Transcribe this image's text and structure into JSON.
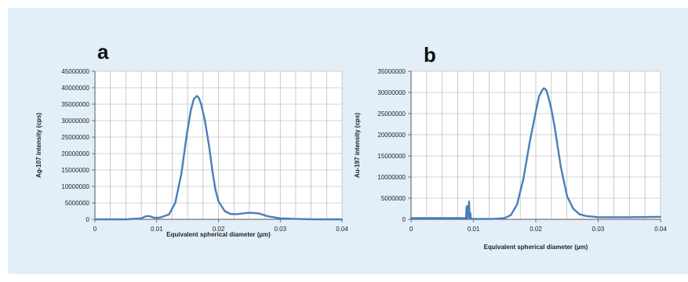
{
  "chart_data": [
    {
      "type": "line",
      "panel_label": "a",
      "xlabel": "Equivalent spherical diameter (µm)",
      "ylabel": "Ag-107 intensity (cps)",
      "xlim": [
        0,
        0.04
      ],
      "ylim": [
        0,
        45000000
      ],
      "x_ticks": [
        "0",
        "0.01",
        "0.02",
        "0.03",
        "0.04"
      ],
      "y_ticks": [
        "0",
        "5000000",
        "10000000",
        "15000000",
        "20000000",
        "25000000",
        "30000000",
        "35000000",
        "40000000",
        "45000000"
      ],
      "x_tick_values": [
        0,
        0.01,
        0.02,
        0.03,
        0.04
      ],
      "y_tick_values": [
        0,
        5000000,
        10000000,
        15000000,
        20000000,
        25000000,
        30000000,
        35000000,
        40000000,
        45000000
      ],
      "grid": true,
      "line_color": "#4a7ebb",
      "series": [
        {
          "x": [
            0,
            0.005,
            0.0075,
            0.0082,
            0.0088,
            0.0095,
            0.0105,
            0.012,
            0.013,
            0.014,
            0.0148,
            0.0155,
            0.016,
            0.0165,
            0.0168,
            0.0172,
            0.0178,
            0.0185,
            0.019,
            0.0195,
            0.02,
            0.021,
            0.022,
            0.023,
            0.024,
            0.025,
            0.0265,
            0.028,
            0.03,
            0.033,
            0.036,
            0.04
          ],
          "y": [
            0,
            0,
            300000,
            900000,
            1000000,
            500000,
            500000,
            1500000,
            5000000,
            14000000,
            25000000,
            33000000,
            36500000,
            37500000,
            37000000,
            35000000,
            30000000,
            22000000,
            15000000,
            9000000,
            5500000,
            2500000,
            1600000,
            1600000,
            1800000,
            2000000,
            1800000,
            900000,
            300000,
            100000,
            0,
            0
          ]
        }
      ]
    },
    {
      "type": "line",
      "panel_label": "b",
      "xlabel": "Equivalent spherical diameter (µm)",
      "ylabel": "Au-197 intensity (cps)",
      "xlim": [
        0,
        0.04
      ],
      "ylim": [
        0,
        35000000
      ],
      "x_ticks": [
        "0",
        "0.01",
        "0.02",
        "0.03",
        "0.04"
      ],
      "y_ticks": [
        "0",
        "5000000",
        "10000000",
        "15000000",
        "20000000",
        "25000000",
        "30000000",
        "35000000"
      ],
      "x_tick_values": [
        0,
        0.01,
        0.02,
        0.03,
        0.04
      ],
      "y_tick_values": [
        0,
        5000000,
        10000000,
        15000000,
        20000000,
        25000000,
        30000000,
        35000000
      ],
      "grid": true,
      "line_color": "#4a7ebb",
      "series": [
        {
          "x": [
            0,
            0.005,
            0.0088,
            0.0089,
            0.009,
            0.0091,
            0.0092,
            0.0093,
            0.0094,
            0.0095,
            0.0096,
            0.01,
            0.013,
            0.015,
            0.016,
            0.017,
            0.018,
            0.019,
            0.02,
            0.0205,
            0.021,
            0.0213,
            0.0217,
            0.022,
            0.0225,
            0.023,
            0.024,
            0.025,
            0.026,
            0.027,
            0.028,
            0.03,
            0.035,
            0.04
          ],
          "y": [
            300000,
            300000,
            300000,
            3000000,
            300000,
            3200000,
            500000,
            4200000,
            300000,
            1500000,
            200000,
            100000,
            100000,
            300000,
            1000000,
            3500000,
            9500000,
            18000000,
            25500000,
            29000000,
            30500000,
            31000000,
            30500000,
            29000000,
            26000000,
            22000000,
            12500000,
            5500000,
            2500000,
            1200000,
            800000,
            500000,
            500000,
            600000
          ]
        }
      ]
    }
  ]
}
